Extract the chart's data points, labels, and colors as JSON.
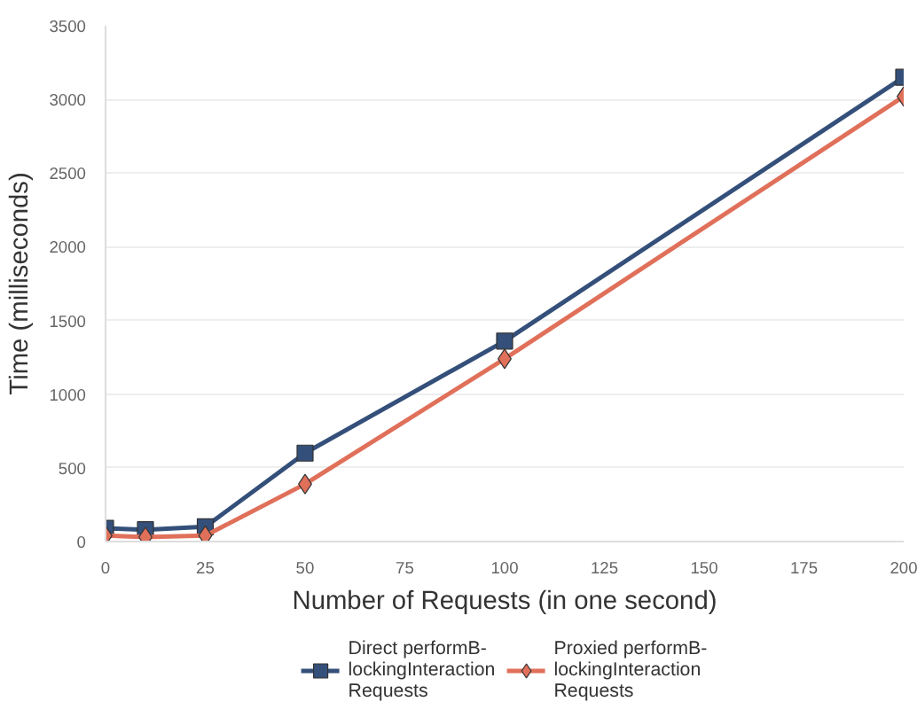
{
  "chart_data": {
    "type": "line",
    "xlabel": "Number of Requests (in one second)",
    "ylabel": "Time (milliseconds)",
    "x": [
      0,
      10,
      25,
      50,
      100,
      200
    ],
    "series": [
      {
        "name": "Direct performB-\nlockingInteraction\nRequests",
        "color": "#34507a",
        "marker": "square",
        "values": [
          90,
          80,
          100,
          600,
          1360,
          3150
        ]
      },
      {
        "name": "Proxied performB-\nlockingInteraction\nRequests",
        "color": "#e0705a",
        "marker": "diamond",
        "values": [
          40,
          30,
          40,
          390,
          1240,
          3020
        ]
      }
    ],
    "xlim": [
      0,
      200
    ],
    "xticks": [
      0,
      25,
      50,
      75,
      100,
      125,
      150,
      175,
      200
    ],
    "ylim": [
      0,
      3500
    ],
    "yticks": [
      0,
      500,
      1000,
      1500,
      2000,
      2500,
      3000,
      3500
    ],
    "grid": "y",
    "legend": "bottom",
    "line_style": "solid"
  }
}
